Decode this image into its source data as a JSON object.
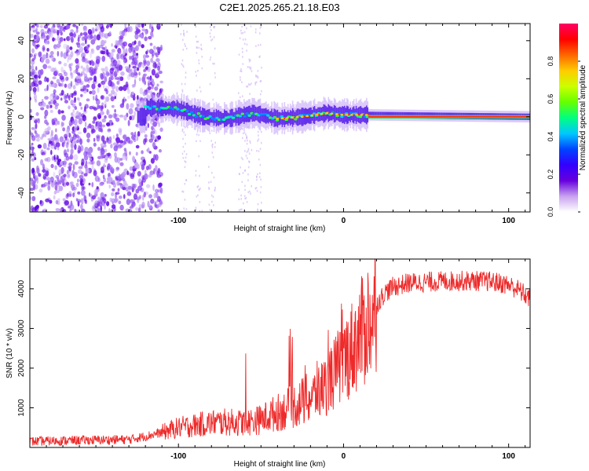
{
  "title": "C2E1.2025.265.21.18.E03",
  "chart_data": [
    {
      "type": "heatmap",
      "name": "spectrogram",
      "xlabel": "Height of straight line (km)",
      "ylabel": "Frequency (Hz)",
      "xlim": [
        -190,
        113
      ],
      "ylim": [
        -50,
        49
      ],
      "xticks": [
        -100,
        0,
        100
      ],
      "yticks": [
        -40,
        -20,
        0,
        20,
        40
      ],
      "colorbar": {
        "label": "Normalized spectral amplitude",
        "range": [
          0.0,
          1.0
        ],
        "ticks": [
          0.0,
          0.2,
          0.4,
          0.6,
          0.8
        ],
        "colors": [
          "#ffffff",
          "#c8a2f0",
          "#6600dd",
          "#3300ff",
          "#0044ff",
          "#00c8ff",
          "#00ff80",
          "#66ff00",
          "#ccff00",
          "#ffcc00",
          "#ff6600",
          "#ff0000",
          "#ff0066"
        ]
      },
      "features": {
        "noise_region_x": [
          -190,
          -110
        ],
        "signal_track": [
          {
            "x": -120,
            "f": 5
          },
          {
            "x": -100,
            "f": 4
          },
          {
            "x": -85,
            "f": 0
          },
          {
            "x": -70,
            "f": -1
          },
          {
            "x": -55,
            "f": 2
          },
          {
            "x": -40,
            "f": -1
          },
          {
            "x": -25,
            "f": 0
          },
          {
            "x": -10,
            "f": 2
          },
          {
            "x": 0,
            "f": 1
          },
          {
            "x": 15,
            "f": 1
          },
          {
            "x": 113,
            "f": 0
          }
        ]
      }
    },
    {
      "type": "line",
      "name": "snr",
      "xlabel": "Height of straight line (km)",
      "ylabel": "SNR (10 * v/v)",
      "xlim": [
        -190,
        113
      ],
      "ylim": [
        0,
        4750
      ],
      "xticks": [
        -100,
        0,
        100
      ],
      "yticks": [
        1000,
        2000,
        3000,
        4000
      ],
      "color": "#ee2a2a",
      "series": [
        {
          "name": "SNR",
          "x": [
            -190,
            -160,
            -130,
            -120,
            -110,
            -100,
            -90,
            -80,
            -70,
            -60,
            -50,
            -45,
            -40,
            -35,
            -30,
            -25,
            -20,
            -15,
            -10,
            -5,
            0,
            5,
            10,
            15,
            20,
            25,
            30,
            40,
            50,
            60,
            70,
            80,
            90,
            100,
            105,
            110,
            113
          ],
          "y": [
            150,
            180,
            200,
            280,
            380,
            500,
            560,
            620,
            640,
            620,
            700,
            800,
            880,
            950,
            1050,
            1150,
            1250,
            1400,
            1600,
            1900,
            2200,
            2500,
            2800,
            3200,
            3600,
            3900,
            4050,
            4150,
            4170,
            4190,
            4200,
            4200,
            4180,
            4100,
            4000,
            3850,
            3750
          ]
        }
      ]
    }
  ]
}
